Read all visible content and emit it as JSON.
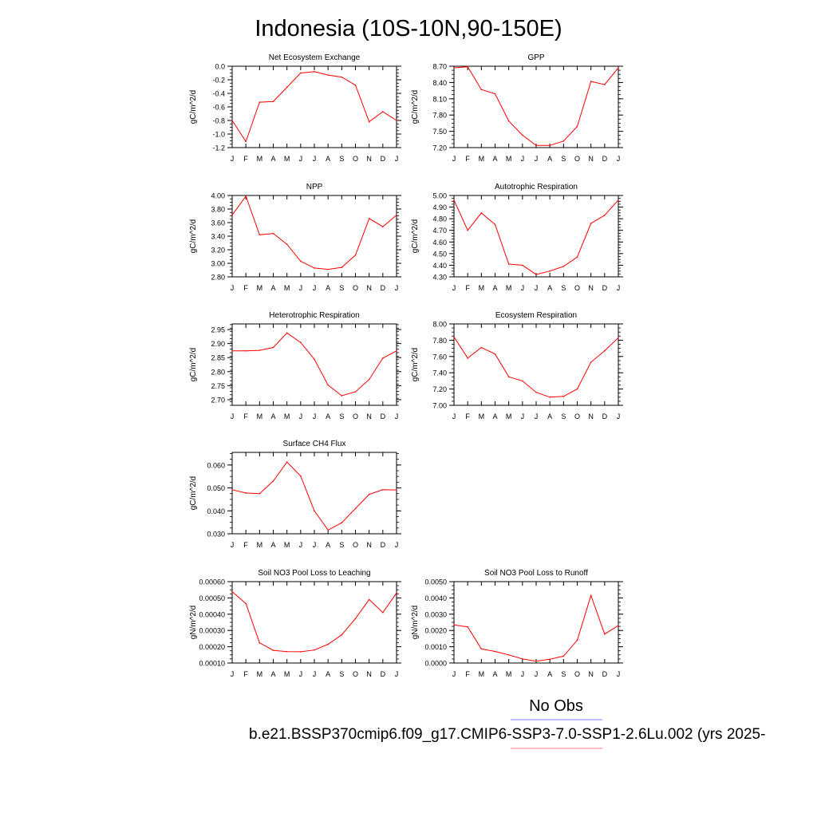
{
  "title": "Indonesia (10S-10N,90-150E)",
  "months": [
    "J",
    "F",
    "M",
    "A",
    "M",
    "J",
    "J",
    "A",
    "S",
    "O",
    "N",
    "D",
    "J"
  ],
  "legend": {
    "obs_label": "No Obs",
    "case_label": "b.e21.BSSP370cmip6.f09_g17.CMIP6-SSP3-7.0-SSP1-2.6Lu.002 (yrs 2025-",
    "obs_color": "#8080ff",
    "case_color": "#ff8080"
  },
  "colors": {
    "series": "#ff0000"
  },
  "chart_data": [
    {
      "type": "line",
      "title": "Net Ecosystem Exchange",
      "ylabel": "gC/m^2/d",
      "ylim": [
        -1.2,
        0.0
      ],
      "yticks": [
        0.0,
        -0.2,
        -0.4,
        -0.6,
        -0.8,
        -1.0,
        -1.2
      ],
      "ytick_labels": [
        "0.0",
        "-0.2",
        "-0.4",
        "-0.6",
        "-0.8",
        "-1.0",
        "-1.2"
      ],
      "values": [
        -0.8,
        -1.11,
        -0.53,
        -0.52,
        -0.31,
        -0.1,
        -0.08,
        -0.13,
        -0.16,
        -0.28,
        -0.82,
        -0.67,
        -0.8
      ]
    },
    {
      "type": "line",
      "title": "GPP",
      "ylabel": "gC/m^2/d",
      "ylim": [
        7.2,
        8.7
      ],
      "yticks": [
        8.7,
        8.4,
        8.1,
        7.8,
        7.5,
        7.2
      ],
      "ytick_labels": [
        "8.70",
        "8.40",
        "8.10",
        "7.80",
        "7.50",
        "7.20"
      ],
      "values": [
        8.67,
        8.69,
        8.27,
        8.19,
        7.69,
        7.43,
        7.24,
        7.24,
        7.32,
        7.59,
        8.42,
        8.36,
        8.67
      ]
    },
    {
      "type": "line",
      "title": "NPP",
      "ylabel": "gC/m^2/d",
      "ylim": [
        2.8,
        4.0
      ],
      "yticks": [
        4.0,
        3.8,
        3.6,
        3.4,
        3.2,
        3.0,
        2.8
      ],
      "ytick_labels": [
        "4.00",
        "3.80",
        "3.60",
        "3.40",
        "3.20",
        "3.00",
        "2.80"
      ],
      "values": [
        3.71,
        3.99,
        3.42,
        3.44,
        3.28,
        3.03,
        2.93,
        2.91,
        2.94,
        3.12,
        3.66,
        3.54,
        3.71
      ]
    },
    {
      "type": "line",
      "title": "Autotrophic Respiration",
      "ylabel": "gC/m^2/d",
      "ylim": [
        4.3,
        5.0
      ],
      "yticks": [
        5.0,
        4.9,
        4.8,
        4.7,
        4.6,
        4.5,
        4.4,
        4.3
      ],
      "ytick_labels": [
        "5.00",
        "4.90",
        "4.80",
        "4.70",
        "4.60",
        "4.50",
        "4.40",
        "4.30"
      ],
      "values": [
        4.96,
        4.7,
        4.85,
        4.75,
        4.41,
        4.4,
        4.32,
        4.35,
        4.39,
        4.47,
        4.76,
        4.83,
        4.96
      ]
    },
    {
      "type": "line",
      "title": "Heterotrophic Respiration",
      "ylabel": "gC/m^2/d",
      "ylim": [
        2.68,
        2.97
      ],
      "yticks": [
        2.95,
        2.9,
        2.85,
        2.8,
        2.75,
        2.7
      ],
      "ytick_labels": [
        "2.95",
        "2.90",
        "2.85",
        "2.80",
        "2.75",
        "2.70"
      ],
      "values": [
        2.874,
        2.874,
        2.876,
        2.886,
        2.938,
        2.904,
        2.844,
        2.752,
        2.714,
        2.728,
        2.772,
        2.848,
        2.874
      ]
    },
    {
      "type": "line",
      "title": "Ecosystem Respiration",
      "ylabel": "gC/m^2/d",
      "ylim": [
        7.0,
        8.0
      ],
      "yticks": [
        8.0,
        7.8,
        7.6,
        7.4,
        7.2,
        7.0
      ],
      "ytick_labels": [
        "8.00",
        "7.80",
        "7.60",
        "7.40",
        "7.20",
        "7.00"
      ],
      "values": [
        7.84,
        7.58,
        7.71,
        7.63,
        7.35,
        7.3,
        7.16,
        7.1,
        7.11,
        7.2,
        7.53,
        7.67,
        7.83
      ]
    },
    {
      "type": "line",
      "title": "Surface CH4 Flux",
      "ylabel": "gC/m^2/d",
      "ylim": [
        0.03,
        0.0655
      ],
      "yticks": [
        0.06,
        0.05,
        0.04,
        0.03
      ],
      "ytick_labels": [
        "0.060",
        "0.050",
        "0.040",
        "0.030"
      ],
      "values": [
        0.0492,
        0.0478,
        0.0475,
        0.053,
        0.0613,
        0.0552,
        0.04,
        0.0316,
        0.0348,
        0.041,
        0.0472,
        0.0492,
        0.0491
      ]
    },
    {
      "type": "line",
      "title": "Soil NO3 Pool Loss to Leaching",
      "ylabel": "gN/m^2/d",
      "ylim": [
        0.0001,
        0.0006
      ],
      "yticks": [
        0.0006,
        0.0005,
        0.0004,
        0.0003,
        0.0002,
        0.0001
      ],
      "ytick_labels": [
        "0.00060",
        "0.00050",
        "0.00040",
        "0.00030",
        "0.00020",
        "0.00010"
      ],
      "values": [
        0.000538,
        0.000465,
        0.000224,
        0.000178,
        0.00017,
        0.000169,
        0.00018,
        0.000215,
        0.000273,
        0.000373,
        0.00049,
        0.00041,
        0.00053
      ]
    },
    {
      "type": "line",
      "title": "Soil NO3 Pool Loss to Runoff",
      "ylabel": "gN/m^2/d",
      "ylim": [
        0.0,
        0.005
      ],
      "yticks": [
        0.005,
        0.004,
        0.003,
        0.002,
        0.001,
        0.0
      ],
      "ytick_labels": [
        "0.0050",
        "0.0040",
        "0.0030",
        "0.0020",
        "0.0010",
        "0.0000"
      ],
      "values": [
        0.00234,
        0.00222,
        0.00087,
        0.00071,
        0.0005,
        0.00025,
        0.00011,
        0.00023,
        0.00042,
        0.0014,
        0.00415,
        0.00178,
        0.0023
      ]
    }
  ]
}
